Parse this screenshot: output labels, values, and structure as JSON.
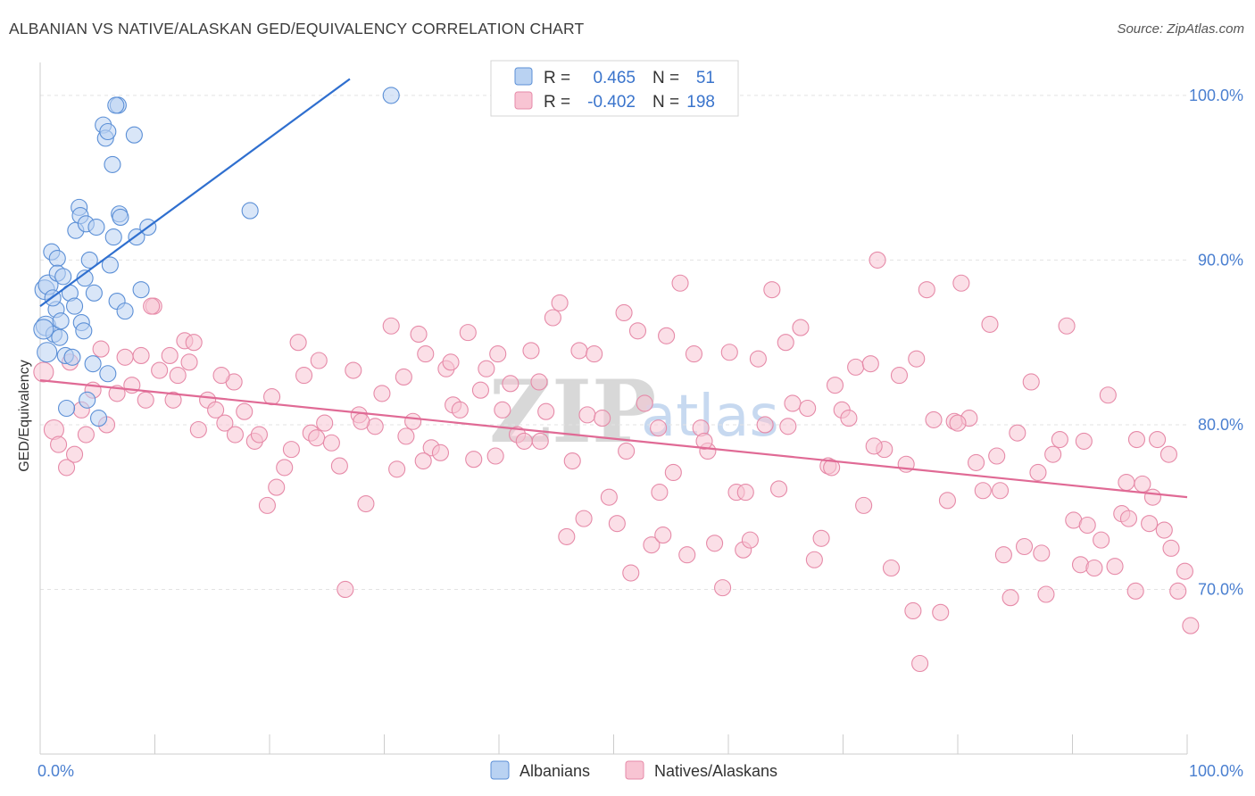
{
  "header": {
    "title": "ALBANIAN VS NATIVE/ALASKAN GED/EQUIVALENCY CORRELATION CHART",
    "source": "Source: ZipAtlas.com"
  },
  "watermark": {
    "zip": "ZIP",
    "atlas": "atlas"
  },
  "colors": {
    "albanians_fill": "#b9d2f2",
    "albanians_stroke": "#5b8fd6",
    "albanians_line": "#2f6fcf",
    "natives_fill": "#f8c4d3",
    "natives_stroke": "#e68aa8",
    "natives_line": "#e06a95",
    "grid": "#e3e3e3",
    "axis_label": "#4a7fd0"
  },
  "legend": {
    "rows": [
      {
        "r_label": "R =",
        "r_value": "0.465",
        "n_label": "N =",
        "n_value": "51"
      },
      {
        "r_label": "R =",
        "r_value": "-0.402",
        "n_label": "N =",
        "n_value": "198"
      }
    ]
  },
  "chart_data": {
    "type": "scatter",
    "title": "ALBANIAN VS NATIVE/ALASKAN GED/EQUIVALENCY CORRELATION CHART",
    "xlabel": "",
    "ylabel": "GED/Equivalency",
    "xlim": [
      0,
      100
    ],
    "ylim": [
      60,
      102
    ],
    "x_tick_labels": [
      "0.0%",
      "100.0%"
    ],
    "y_ticks": [
      70,
      80,
      90,
      100
    ],
    "y_tick_labels": [
      "70.0%",
      "80.0%",
      "90.0%",
      "100.0%"
    ],
    "grid": true,
    "legend_position": "top-center",
    "series": [
      {
        "name": "Albanians",
        "r": 0.465,
        "n": 51,
        "trend": {
          "x": [
            0,
            27
          ],
          "y": [
            87.2,
            101.0
          ]
        },
        "points": [
          [
            0.5,
            86.0
          ],
          [
            0.4,
            88.2
          ],
          [
            0.6,
            84.4
          ],
          [
            0.7,
            88.5
          ],
          [
            1.0,
            90.5
          ],
          [
            1.2,
            85.5
          ],
          [
            1.4,
            87.0
          ],
          [
            1.5,
            90.1
          ],
          [
            1.5,
            89.2
          ],
          [
            1.7,
            85.3
          ],
          [
            1.8,
            86.3
          ],
          [
            2.0,
            89.0
          ],
          [
            2.2,
            84.2
          ],
          [
            2.3,
            81.0
          ],
          [
            2.6,
            88.0
          ],
          [
            2.8,
            84.1
          ],
          [
            3.0,
            87.2
          ],
          [
            3.1,
            91.8
          ],
          [
            3.4,
            93.2
          ],
          [
            3.5,
            92.7
          ],
          [
            3.6,
            86.2
          ],
          [
            3.8,
            85.7
          ],
          [
            3.9,
            88.9
          ],
          [
            4.0,
            92.2
          ],
          [
            4.1,
            81.5
          ],
          [
            4.3,
            90.0
          ],
          [
            4.6,
            83.7
          ],
          [
            4.7,
            88.0
          ],
          [
            4.9,
            92.0
          ],
          [
            5.1,
            80.4
          ],
          [
            6.8,
            99.4
          ],
          [
            6.6,
            99.4
          ],
          [
            5.5,
            98.2
          ],
          [
            5.7,
            97.4
          ],
          [
            5.9,
            97.8
          ],
          [
            6.1,
            89.7
          ],
          [
            6.3,
            95.8
          ],
          [
            6.4,
            91.4
          ],
          [
            6.7,
            87.5
          ],
          [
            6.9,
            92.8
          ],
          [
            7.0,
            92.6
          ],
          [
            7.4,
            86.9
          ],
          [
            8.2,
            97.6
          ],
          [
            8.4,
            91.4
          ],
          [
            8.8,
            88.2
          ],
          [
            9.4,
            92.0
          ],
          [
            5.9,
            83.1
          ],
          [
            18.3,
            93.0
          ],
          [
            30.6,
            100.0
          ],
          [
            1.1,
            87.7
          ],
          [
            0.3,
            85.8
          ]
        ]
      },
      {
        "name": "Natives/Alaskans",
        "r": -0.402,
        "n": 198,
        "trend": {
          "x": [
            0,
            100
          ],
          "y": [
            82.7,
            75.6
          ]
        },
        "points": [
          [
            0.3,
            83.2
          ],
          [
            1.2,
            79.7
          ],
          [
            1.6,
            78.8
          ],
          [
            2.3,
            77.4
          ],
          [
            2.6,
            83.8
          ],
          [
            3.0,
            78.2
          ],
          [
            3.6,
            80.9
          ],
          [
            4.0,
            79.4
          ],
          [
            4.6,
            82.1
          ],
          [
            5.3,
            84.6
          ],
          [
            5.8,
            80.0
          ],
          [
            6.7,
            81.9
          ],
          [
            7.4,
            84.1
          ],
          [
            8.0,
            82.4
          ],
          [
            8.8,
            84.2
          ],
          [
            9.2,
            81.5
          ],
          [
            9.9,
            87.2
          ],
          [
            10.4,
            83.3
          ],
          [
            11.3,
            84.2
          ],
          [
            11.6,
            81.5
          ],
          [
            12.0,
            83.0
          ],
          [
            12.6,
            85.1
          ],
          [
            13.0,
            83.8
          ],
          [
            13.8,
            79.7
          ],
          [
            14.6,
            81.5
          ],
          [
            15.3,
            80.9
          ],
          [
            16.1,
            80.1
          ],
          [
            16.9,
            82.6
          ],
          [
            17.8,
            80.8
          ],
          [
            18.7,
            79.0
          ],
          [
            19.1,
            79.4
          ],
          [
            19.8,
            75.1
          ],
          [
            20.6,
            76.2
          ],
          [
            21.3,
            77.4
          ],
          [
            21.9,
            78.5
          ],
          [
            22.5,
            85.0
          ],
          [
            23.0,
            83.0
          ],
          [
            23.6,
            79.5
          ],
          [
            24.1,
            79.2
          ],
          [
            24.8,
            80.1
          ],
          [
            25.4,
            78.9
          ],
          [
            26.1,
            77.5
          ],
          [
            26.6,
            70.0
          ],
          [
            27.3,
            83.3
          ],
          [
            27.8,
            80.6
          ],
          [
            28.4,
            75.2
          ],
          [
            29.2,
            79.9
          ],
          [
            29.8,
            81.9
          ],
          [
            30.6,
            86.0
          ],
          [
            31.1,
            77.3
          ],
          [
            31.7,
            82.9
          ],
          [
            32.5,
            80.2
          ],
          [
            33.0,
            85.5
          ],
          [
            33.6,
            84.3
          ],
          [
            34.1,
            78.6
          ],
          [
            34.9,
            78.3
          ],
          [
            35.4,
            83.4
          ],
          [
            36.0,
            81.2
          ],
          [
            36.6,
            80.9
          ],
          [
            37.3,
            85.6
          ],
          [
            37.8,
            77.9
          ],
          [
            38.4,
            82.1
          ],
          [
            38.9,
            83.4
          ],
          [
            39.7,
            78.1
          ],
          [
            40.3,
            80.9
          ],
          [
            41.0,
            82.5
          ],
          [
            41.6,
            79.4
          ],
          [
            42.2,
            79.0
          ],
          [
            42.8,
            84.5
          ],
          [
            43.5,
            82.6
          ],
          [
            44.1,
            80.8
          ],
          [
            44.7,
            86.5
          ],
          [
            45.3,
            87.4
          ],
          [
            45.9,
            73.2
          ],
          [
            46.4,
            77.8
          ],
          [
            47.0,
            84.5
          ],
          [
            47.7,
            80.6
          ],
          [
            48.3,
            84.3
          ],
          [
            49.0,
            80.4
          ],
          [
            49.6,
            75.6
          ],
          [
            50.3,
            74.0
          ],
          [
            50.9,
            86.8
          ],
          [
            51.5,
            71.0
          ],
          [
            52.1,
            85.7
          ],
          [
            52.7,
            81.3
          ],
          [
            53.3,
            72.7
          ],
          [
            54.0,
            75.9
          ],
          [
            54.6,
            85.4
          ],
          [
            55.2,
            77.1
          ],
          [
            55.8,
            88.6
          ],
          [
            56.4,
            72.1
          ],
          [
            57.0,
            84.3
          ],
          [
            57.6,
            79.8
          ],
          [
            58.2,
            78.4
          ],
          [
            58.8,
            72.8
          ],
          [
            59.5,
            70.1
          ],
          [
            60.1,
            84.4
          ],
          [
            60.7,
            75.9
          ],
          [
            61.3,
            72.4
          ],
          [
            61.9,
            73.0
          ],
          [
            62.6,
            84.0
          ],
          [
            63.2,
            80.0
          ],
          [
            63.8,
            88.2
          ],
          [
            64.4,
            76.1
          ],
          [
            65.0,
            85.0
          ],
          [
            65.6,
            81.3
          ],
          [
            66.3,
            85.9
          ],
          [
            66.9,
            81.0
          ],
          [
            67.5,
            71.8
          ],
          [
            68.1,
            73.1
          ],
          [
            68.7,
            77.5
          ],
          [
            69.3,
            82.4
          ],
          [
            69.9,
            80.9
          ],
          [
            70.5,
            80.4
          ],
          [
            71.1,
            83.5
          ],
          [
            71.8,
            75.1
          ],
          [
            72.4,
            83.7
          ],
          [
            73.0,
            90.0
          ],
          [
            73.6,
            78.5
          ],
          [
            74.2,
            71.3
          ],
          [
            74.9,
            83.0
          ],
          [
            75.5,
            77.6
          ],
          [
            76.1,
            68.7
          ],
          [
            76.7,
            65.5
          ],
          [
            77.3,
            88.2
          ],
          [
            77.9,
            80.3
          ],
          [
            78.5,
            68.6
          ],
          [
            79.1,
            75.4
          ],
          [
            79.7,
            80.2
          ],
          [
            80.3,
            88.6
          ],
          [
            81.0,
            80.4
          ],
          [
            81.6,
            77.7
          ],
          [
            82.2,
            76.0
          ],
          [
            82.8,
            86.1
          ],
          [
            83.4,
            78.1
          ],
          [
            84.0,
            72.1
          ],
          [
            84.6,
            69.5
          ],
          [
            85.2,
            79.5
          ],
          [
            85.8,
            72.6
          ],
          [
            86.4,
            82.6
          ],
          [
            87.0,
            77.1
          ],
          [
            87.7,
            69.7
          ],
          [
            88.3,
            78.2
          ],
          [
            88.9,
            79.1
          ],
          [
            89.5,
            86.0
          ],
          [
            90.1,
            74.2
          ],
          [
            90.7,
            71.5
          ],
          [
            91.3,
            73.9
          ],
          [
            91.9,
            71.3
          ],
          [
            92.5,
            73.0
          ],
          [
            93.1,
            81.8
          ],
          [
            93.7,
            71.4
          ],
          [
            94.3,
            74.6
          ],
          [
            94.9,
            74.3
          ],
          [
            95.5,
            69.9
          ],
          [
            96.1,
            76.4
          ],
          [
            96.7,
            74.0
          ],
          [
            97.4,
            79.1
          ],
          [
            98.0,
            73.6
          ],
          [
            98.6,
            72.5
          ],
          [
            99.2,
            69.9
          ],
          [
            99.8,
            71.1
          ],
          [
            100.3,
            67.8
          ],
          [
            95.6,
            79.1
          ],
          [
            97.0,
            75.6
          ],
          [
            9.7,
            87.2
          ],
          [
            13.4,
            85.0
          ],
          [
            17.0,
            79.4
          ],
          [
            20.2,
            81.7
          ],
          [
            24.3,
            83.9
          ],
          [
            28.0,
            80.2
          ],
          [
            31.9,
            79.3
          ],
          [
            35.8,
            83.8
          ],
          [
            39.9,
            84.3
          ],
          [
            43.6,
            79.0
          ],
          [
            47.4,
            74.3
          ],
          [
            51.1,
            78.4
          ],
          [
            54.3,
            73.3
          ],
          [
            57.9,
            79.0
          ],
          [
            61.5,
            75.9
          ],
          [
            65.2,
            79.9
          ],
          [
            69.0,
            77.4
          ],
          [
            72.7,
            78.7
          ],
          [
            76.4,
            84.0
          ],
          [
            80.0,
            80.1
          ],
          [
            83.7,
            76.0
          ],
          [
            87.3,
            72.2
          ],
          [
            91.0,
            79.0
          ],
          [
            94.7,
            76.5
          ],
          [
            98.4,
            78.2
          ],
          [
            15.8,
            83.0
          ],
          [
            33.4,
            77.8
          ],
          [
            53.9,
            79.8
          ]
        ]
      }
    ]
  },
  "bottom_legend": {
    "albanians": "Albanians",
    "natives": "Natives/Alaskans"
  }
}
